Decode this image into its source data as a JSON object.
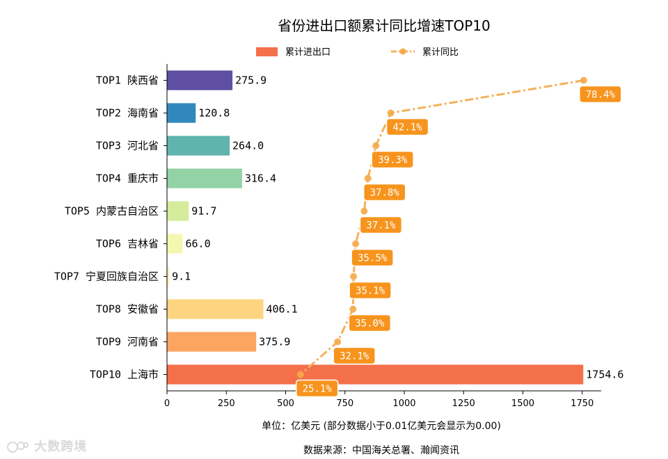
{
  "chart_data": {
    "type": "bar",
    "orientation": "horizontal",
    "title": "省份进出口额累计同比增速TOP10",
    "categories": [
      "TOP1 陕西省",
      "TOP2 海南省",
      "TOP3 河北省",
      "TOP4 重庆市",
      "TOP5 内蒙古自治区",
      "TOP6 吉林省",
      "TOP7 宁夏回族自治区",
      "TOP8 安徽省",
      "TOP9 河南省",
      "TOP10 上海市"
    ],
    "series": [
      {
        "name": "累计进出口",
        "type": "bar",
        "values": [
          275.9,
          120.8,
          264.0,
          316.4,
          91.7,
          66.0,
          9.1,
          406.1,
          375.9,
          1754.6
        ],
        "value_labels": [
          "275.9",
          "120.8",
          "264.0",
          "316.4",
          "91.7",
          "66.0",
          "9.1",
          "406.1",
          "375.9",
          "1754.6"
        ],
        "colors": [
          "#5e4fa2",
          "#3288bd",
          "#5fb4ad",
          "#92d2a5",
          "#d4ec9c",
          "#f3f8b0",
          "#fff2b8",
          "#fdd47f",
          "#fba561",
          "#f4704a"
        ]
      },
      {
        "name": "累计同比",
        "type": "line",
        "values": [
          78.4,
          42.1,
          39.3,
          37.8,
          37.1,
          35.5,
          35.1,
          35.0,
          32.1,
          25.1
        ],
        "value_labels": [
          "78.4%",
          "42.1%",
          "39.3%",
          "37.8%",
          "37.1%",
          "35.5%",
          "35.1%",
          "35.0%",
          "32.1%",
          "25.1%"
        ],
        "color": "#f5b05c"
      }
    ],
    "xlim": [
      0,
      1830
    ],
    "xticks": [
      0,
      250,
      500,
      750,
      1000,
      1250,
      1500,
      1750
    ],
    "xtick_labels": [
      "0",
      "250",
      "500",
      "750",
      "1000",
      "1250",
      "1500",
      "1750"
    ],
    "yoy_scale_note": "line points plotted at 22.4 x-units per percent",
    "legend": {
      "position": "top-center",
      "bar_label": "累计进出口",
      "line_label": "累计同比"
    },
    "xlabel": "单位：亿美元  (部分数据小于0.01亿美元会显示为0.00)",
    "source": "数据来源：中国海关总署、瀚闻资讯"
  },
  "colors": {
    "line": "#f5b05c",
    "line_marker": "#f5a94a",
    "label_box": "#f7941d"
  },
  "watermark": {
    "text": "大数跨境"
  }
}
